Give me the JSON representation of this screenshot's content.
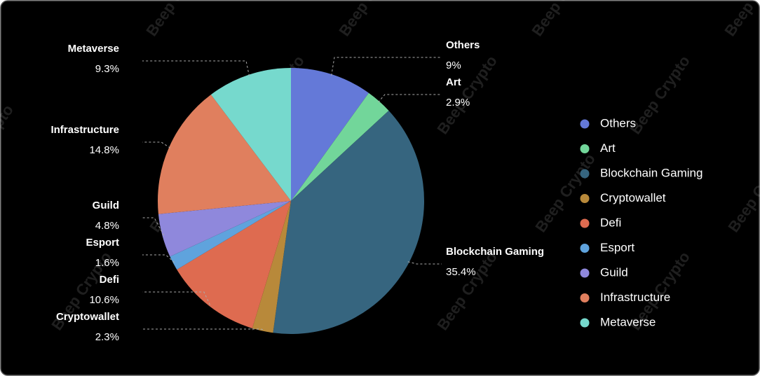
{
  "chart_data": {
    "type": "pie",
    "watermark": "Beep Crypto",
    "categories": [
      "Others",
      "Art",
      "Blockchain Gaming",
      "Cryptowallet",
      "Defi",
      "Esport",
      "Guild",
      "Infrastructure",
      "Metaverse"
    ],
    "values": [
      9,
      2.9,
      35.4,
      2.3,
      10.6,
      1.6,
      4.8,
      14.8,
      9.3
    ],
    "value_labels": [
      "9%",
      "2.9%",
      "35.4%",
      "2.3%",
      "10.6%",
      "1.6%",
      "4.8%",
      "14.8%",
      "9.3%"
    ],
    "colors": [
      "#6479d8",
      "#72d69a",
      "#36657f",
      "#b8893a",
      "#de6b50",
      "#5fa3dd",
      "#8f88dc",
      "#e07f5e",
      "#76d9cd"
    ],
    "legend": "right"
  }
}
